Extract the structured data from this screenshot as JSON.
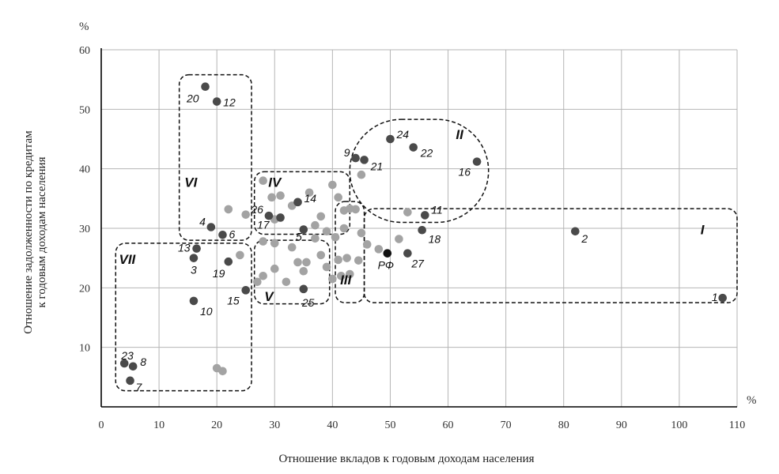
{
  "chart_data": {
    "type": "scatter",
    "xlabel": "Отношение вкладов к годовым доходам населения",
    "ylabel": "Отношение задолженности по кредитам к годовым доходам населения",
    "x_unit": "%",
    "y_unit": "%",
    "xlim": [
      0,
      110
    ],
    "ylim": [
      0,
      60
    ],
    "x_ticks": [
      "0",
      "10",
      "20",
      "30",
      "40",
      "50",
      "60",
      "70",
      "80",
      "90",
      "100",
      "110"
    ],
    "y_ticks": [
      "10",
      "20",
      "30",
      "40",
      "50",
      "60"
    ],
    "grid": true,
    "colors": {
      "labeled": "#4a4a4a",
      "unlabeled": "#a3a3a3",
      "rf": "#111111",
      "grid": "#b5b5b5"
    },
    "labeled_points": [
      {
        "label": "1",
        "x": 107.5,
        "y": 18.3
      },
      {
        "label": "2",
        "x": 82,
        "y": 29.5
      },
      {
        "label": "3",
        "x": 16,
        "y": 25
      },
      {
        "label": "4",
        "x": 19,
        "y": 30.2
      },
      {
        "label": "5",
        "x": 35,
        "y": 29.8
      },
      {
        "label": "6",
        "x": 21,
        "y": 28.9
      },
      {
        "label": "7",
        "x": 5,
        "y": 4.4
      },
      {
        "label": "8",
        "x": 5.5,
        "y": 6.8
      },
      {
        "label": "9",
        "x": 44,
        "y": 41.8
      },
      {
        "label": "10",
        "x": 16,
        "y": 17.8
      },
      {
        "label": "11",
        "x": 56,
        "y": 32.2
      },
      {
        "label": "12",
        "x": 20,
        "y": 51.3
      },
      {
        "label": "13",
        "x": 16.5,
        "y": 26.6
      },
      {
        "label": "14",
        "x": 34,
        "y": 34.4
      },
      {
        "label": "15",
        "x": 25,
        "y": 19.6
      },
      {
        "label": "16",
        "x": 65,
        "y": 41.2
      },
      {
        "label": "17",
        "x": 31,
        "y": 31.8
      },
      {
        "label": "18",
        "x": 55.5,
        "y": 29.7
      },
      {
        "label": "19",
        "x": 22,
        "y": 24.4
      },
      {
        "label": "20",
        "x": 18,
        "y": 53.8
      },
      {
        "label": "21",
        "x": 45.5,
        "y": 41.5
      },
      {
        "label": "22",
        "x": 54,
        "y": 43.6
      },
      {
        "label": "23",
        "x": 4,
        "y": 7.3
      },
      {
        "label": "24",
        "x": 50,
        "y": 45
      },
      {
        "label": "25",
        "x": 35,
        "y": 19.8
      },
      {
        "label": "26",
        "x": 29,
        "y": 32.1
      },
      {
        "label": "27",
        "x": 53,
        "y": 25.8
      },
      {
        "label": "РФ",
        "x": 49.5,
        "y": 25.8
      }
    ],
    "unlabeled_points": [
      {
        "x": 20,
        "y": 6.5
      },
      {
        "x": 21,
        "y": 6
      },
      {
        "x": 22,
        "y": 33.2
      },
      {
        "x": 25,
        "y": 32.3
      },
      {
        "x": 24,
        "y": 25.5
      },
      {
        "x": 28,
        "y": 38
      },
      {
        "x": 29.5,
        "y": 35.2
      },
      {
        "x": 31,
        "y": 35.5
      },
      {
        "x": 33,
        "y": 33.8
      },
      {
        "x": 30,
        "y": 31.5
      },
      {
        "x": 36,
        "y": 36
      },
      {
        "x": 38,
        "y": 32
      },
      {
        "x": 37,
        "y": 30.5
      },
      {
        "x": 39,
        "y": 29.5
      },
      {
        "x": 40,
        "y": 37.3
      },
      {
        "x": 41,
        "y": 35.2
      },
      {
        "x": 42,
        "y": 33
      },
      {
        "x": 43,
        "y": 33.3
      },
      {
        "x": 44,
        "y": 33.2
      },
      {
        "x": 45,
        "y": 39
      },
      {
        "x": 42,
        "y": 30
      },
      {
        "x": 40.5,
        "y": 28.5
      },
      {
        "x": 28,
        "y": 27.8
      },
      {
        "x": 30,
        "y": 27.5
      },
      {
        "x": 33,
        "y": 26.8
      },
      {
        "x": 34,
        "y": 24.3
      },
      {
        "x": 35.5,
        "y": 24.3
      },
      {
        "x": 38,
        "y": 25.5
      },
      {
        "x": 39,
        "y": 23.5
      },
      {
        "x": 41,
        "y": 24.7
      },
      {
        "x": 42.5,
        "y": 25
      },
      {
        "x": 44.5,
        "y": 24.6
      },
      {
        "x": 43,
        "y": 22.3
      },
      {
        "x": 41.5,
        "y": 22
      },
      {
        "x": 40,
        "y": 21.5
      },
      {
        "x": 35,
        "y": 22.8
      },
      {
        "x": 32,
        "y": 21
      },
      {
        "x": 30,
        "y": 23.2
      },
      {
        "x": 28,
        "y": 22
      },
      {
        "x": 27,
        "y": 21
      },
      {
        "x": 46,
        "y": 27.3
      },
      {
        "x": 48,
        "y": 26.5
      },
      {
        "x": 51.5,
        "y": 28.2
      },
      {
        "x": 53,
        "y": 32.7
      },
      {
        "x": 45,
        "y": 29.2
      },
      {
        "x": 37,
        "y": 28.3
      }
    ],
    "clusters": [
      {
        "label": "I",
        "x0": 45.5,
        "x1": 110,
        "y0": 17.5,
        "y1": 33.3,
        "label_x": 104,
        "label_y": 29
      },
      {
        "label": "II",
        "x0": 43,
        "x1": 67,
        "y0": 31,
        "y1": 48.3,
        "label_x": 62,
        "label_y": 45
      },
      {
        "label": "III",
        "x0": 40.5,
        "x1": 45.5,
        "y0": 17.5,
        "y1": 34.5,
        "label_x": 42.3,
        "label_y": 20.6
      },
      {
        "label": "IV",
        "x0": 26.5,
        "x1": 43,
        "y0": 29,
        "y1": 39.5,
        "label_x": 30,
        "label_y": 37
      },
      {
        "label": "V",
        "x0": 26.5,
        "x1": 39.5,
        "y0": 17.3,
        "y1": 28,
        "label_x": 29,
        "label_y": 17.8
      },
      {
        "label": "VI",
        "x0": 13.5,
        "x1": 26,
        "y0": 28,
        "y1": 55.8,
        "label_x": 15.5,
        "label_y": 37
      },
      {
        "label": "VII",
        "x0": 2.5,
        "x1": 26,
        "y0": 2.7,
        "y1": 27.5,
        "label_x": 4.5,
        "label_y": 24
      }
    ]
  }
}
